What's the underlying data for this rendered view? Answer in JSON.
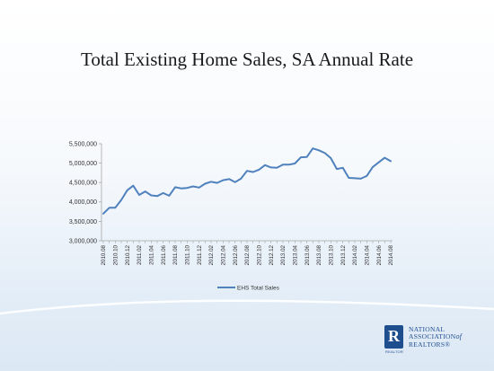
{
  "slide": {
    "title": "Total Existing Home Sales, SA Annual Rate"
  },
  "logo": {
    "mark": "R",
    "sub": "REALTOR",
    "line1": "NATIONAL",
    "line2a": "ASSOCIATION",
    "line2b": "of",
    "line3": "REALTORS®"
  },
  "colors": {
    "series": "#4f81bd",
    "axis": "#a6a6a6",
    "brand": "#1f4e8f"
  },
  "chart_data": {
    "type": "line",
    "title": "",
    "xlabel": "",
    "ylabel": "",
    "ylim": [
      3000000,
      5500000
    ],
    "yticks": [
      3000000,
      3500000,
      4000000,
      4500000,
      5000000,
      5500000
    ],
    "ytick_labels": [
      "3,000,000",
      "3,500,000",
      "4,000,000",
      "4,500,000",
      "5,000,000",
      "5,500,000"
    ],
    "xtick_labels": [
      "2010.08",
      "2010.10",
      "2010.12",
      "2011.02",
      "2011.04",
      "2011.06",
      "2011.08",
      "2011.10",
      "2011.12",
      "2012.02",
      "2012.04",
      "2012.06",
      "2012.08",
      "2012.10",
      "2012.12",
      "2013.02",
      "2013.04",
      "2013.06",
      "2013.08",
      "2013.10",
      "2013.12",
      "2014.02",
      "2014.04",
      "2014.06",
      "2014.08"
    ],
    "x": [
      "2010.08",
      "2010.09",
      "2010.10",
      "2010.11",
      "2010.12",
      "2011.01",
      "2011.02",
      "2011.03",
      "2011.04",
      "2011.05",
      "2011.06",
      "2011.07",
      "2011.08",
      "2011.09",
      "2011.10",
      "2011.11",
      "2011.12",
      "2012.01",
      "2012.02",
      "2012.03",
      "2012.04",
      "2012.05",
      "2012.06",
      "2012.07",
      "2012.08",
      "2012.09",
      "2012.10",
      "2012.11",
      "2012.12",
      "2013.01",
      "2013.02",
      "2013.03",
      "2013.04",
      "2013.05",
      "2013.06",
      "2013.07",
      "2013.08",
      "2013.09",
      "2013.10",
      "2013.11",
      "2013.12",
      "2014.01",
      "2014.02",
      "2014.03",
      "2014.04",
      "2014.05",
      "2014.06",
      "2014.07",
      "2014.08"
    ],
    "grid": false,
    "legend": "bottom",
    "series": [
      {
        "name": "EHS Total Sales",
        "values": [
          3700000,
          3850000,
          3850000,
          4050000,
          4300000,
          4420000,
          4180000,
          4270000,
          4170000,
          4150000,
          4230000,
          4160000,
          4380000,
          4350000,
          4360000,
          4400000,
          4370000,
          4470000,
          4520000,
          4490000,
          4560000,
          4590000,
          4510000,
          4600000,
          4800000,
          4770000,
          4830000,
          4950000,
          4890000,
          4880000,
          4960000,
          4960000,
          4990000,
          5150000,
          5160000,
          5380000,
          5330000,
          5260000,
          5130000,
          4850000,
          4880000,
          4620000,
          4610000,
          4600000,
          4670000,
          4900000,
          5020000,
          5140000,
          5050000
        ]
      }
    ]
  }
}
